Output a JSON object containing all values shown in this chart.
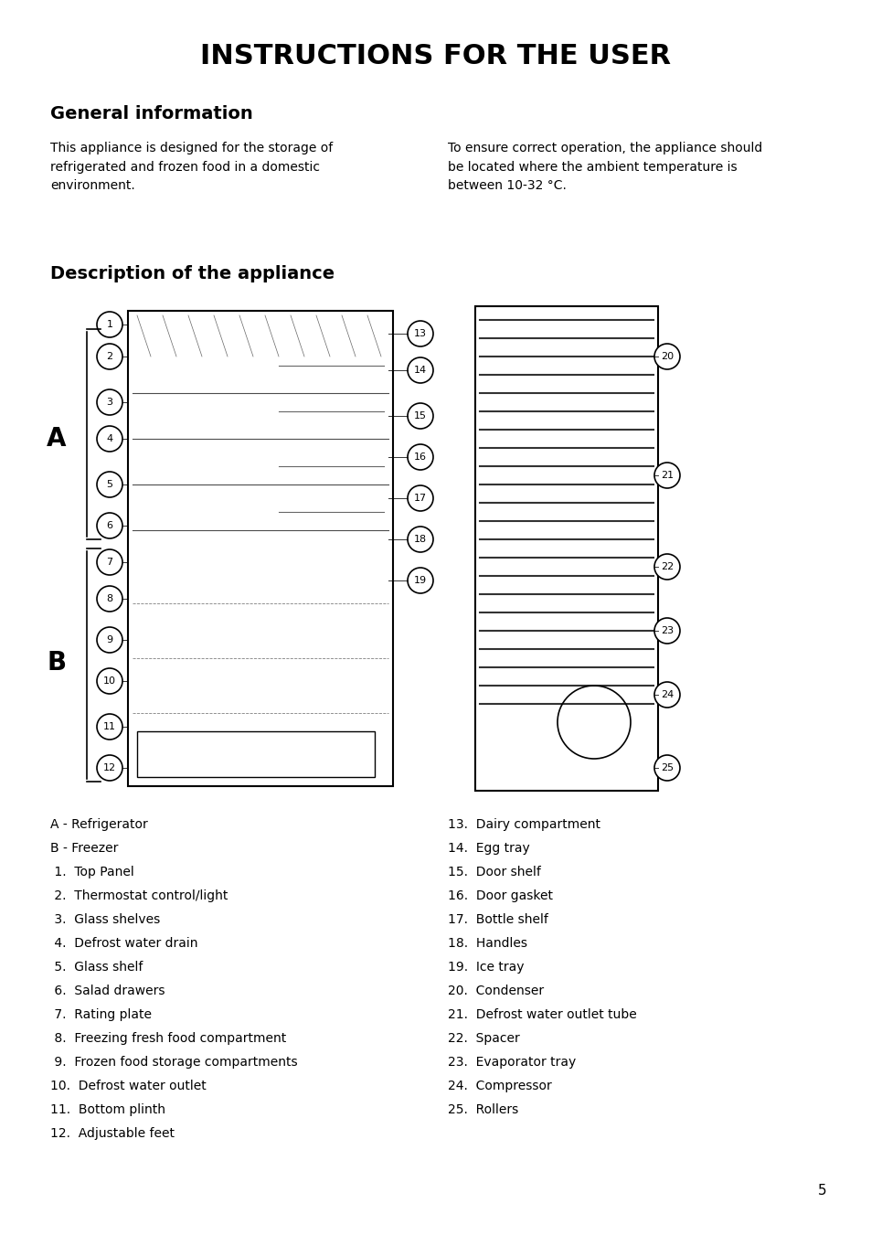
{
  "title": "INSTRUCTIONS FOR THE USER",
  "section1_title": "General information",
  "section1_col1": "This appliance is designed for the storage of\nrefrigerated and frozen food in a domestic\nenvironment.",
  "section1_col2": "To ensure correct operation, the appliance should\nbe located where the ambient temperature is\nbetween 10-32 °C.",
  "section2_title": "Description of the appliance",
  "left_labels": [
    "A - Refrigerator",
    "B - Freezer",
    " 1.  Top Panel",
    " 2.  Thermostat control/light",
    " 3.  Glass shelves",
    " 4.  Defrost water drain",
    " 5.  Glass shelf",
    " 6.  Salad drawers",
    " 7.  Rating plate",
    " 8.  Freezing fresh food compartment",
    " 9.  Frozen food storage compartments",
    "10.  Defrost water outlet",
    "11.  Bottom plinth",
    "12.  Adjustable feet"
  ],
  "right_labels": [
    "13.  Dairy compartment",
    "14.  Egg tray",
    "15.  Door shelf",
    "16.  Door gasket",
    "17.  Bottle shelf",
    "18.  Handles",
    "19.  Ice tray",
    "20.  Condenser",
    "21.  Defrost water outlet tube",
    "22.  Spacer",
    "23.  Evaporator tray",
    "24.  Compressor",
    "25.  Rollers"
  ],
  "page_number": "5",
  "bg_color": "#ffffff",
  "text_color": "#000000",
  "title_fontsize": 22,
  "section_title_fontsize": 14,
  "body_fontsize": 10,
  "label_fontsize": 10
}
